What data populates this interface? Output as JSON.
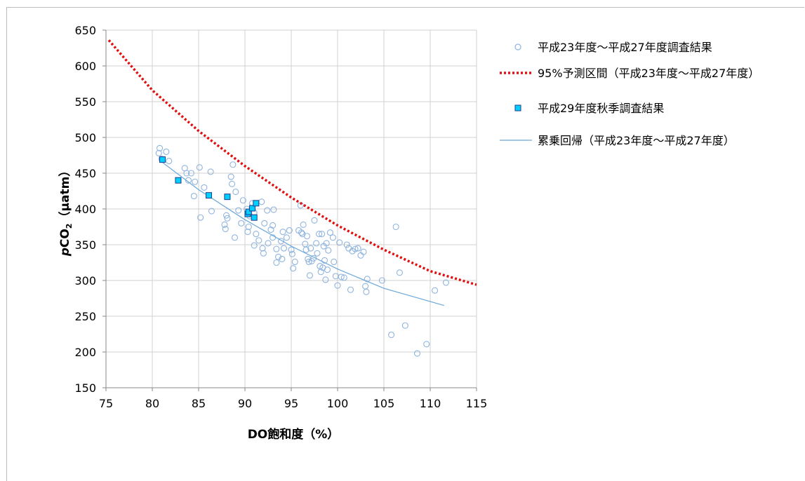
{
  "chart_data": {
    "type": "scatter",
    "xlabel": "DO飽和度（%）",
    "ylabel_italic": "p",
    "ylabel_main": "CO",
    "ylabel_sub": "2",
    "ylabel_unit": "（µatm）",
    "xlim": [
      75,
      115
    ],
    "ylim": [
      150,
      650
    ],
    "xticks": [
      "75",
      "80",
      "85",
      "90",
      "95",
      "100",
      "105",
      "110",
      "115"
    ],
    "yticks": [
      "150",
      "200",
      "250",
      "300",
      "350",
      "400",
      "450",
      "500",
      "550",
      "600",
      "650"
    ],
    "grid": "both",
    "legend_placement": "right",
    "colors": {
      "survey_circle": "#8fb4de",
      "prediction_line": "#e01010",
      "autumn_fill": "#00d0ff",
      "autumn_stroke": "#1f3d8c",
      "regression_line": "#6aa7da",
      "grid": "#d0d0d0"
    },
    "series": [
      {
        "name": "平成23年度～平成27年度調査結果",
        "kind": "scatter-circle",
        "points": [
          [
            80.8,
            485
          ],
          [
            80.7,
            478
          ],
          [
            81.0,
            470
          ],
          [
            81.5,
            480
          ],
          [
            81.8,
            467
          ],
          [
            83.5,
            457
          ],
          [
            83.7,
            450
          ],
          [
            84.2,
            450
          ],
          [
            83.9,
            440
          ],
          [
            84.6,
            438
          ],
          [
            84.5,
            418
          ],
          [
            85.1,
            458
          ],
          [
            85.2,
            388
          ],
          [
            85.6,
            430
          ],
          [
            86.3,
            452
          ],
          [
            86.4,
            397
          ],
          [
            88.7,
            462
          ],
          [
            88.5,
            445
          ],
          [
            88.6,
            435
          ],
          [
            89.0,
            424
          ],
          [
            88.0,
            391
          ],
          [
            88.1,
            387
          ],
          [
            87.8,
            378
          ],
          [
            87.9,
            372
          ],
          [
            88.9,
            360
          ],
          [
            89.3,
            398
          ],
          [
            89.6,
            380
          ],
          [
            89.8,
            412
          ],
          [
            90.2,
            400
          ],
          [
            90.5,
            390
          ],
          [
            90.4,
            375
          ],
          [
            90.3,
            368
          ],
          [
            90.8,
            408
          ],
          [
            91.0,
            395
          ],
          [
            91.2,
            365
          ],
          [
            91.0,
            349
          ],
          [
            91.5,
            356
          ],
          [
            91.8,
            410
          ],
          [
            91.9,
            345
          ],
          [
            92.0,
            338
          ],
          [
            92.1,
            380
          ],
          [
            92.4,
            398
          ],
          [
            92.5,
            352
          ],
          [
            92.8,
            371
          ],
          [
            93.0,
            360
          ],
          [
            93.1,
            399
          ],
          [
            93.0,
            377
          ],
          [
            93.4,
            344
          ],
          [
            93.6,
            333
          ],
          [
            93.4,
            325
          ],
          [
            93.9,
            355
          ],
          [
            94.1,
            368
          ],
          [
            94.0,
            330
          ],
          [
            94.2,
            345
          ],
          [
            94.5,
            360
          ],
          [
            94.8,
            370
          ],
          [
            95.0,
            343
          ],
          [
            95.1,
            337
          ],
          [
            95.2,
            317
          ],
          [
            95.4,
            326
          ],
          [
            95.8,
            370
          ],
          [
            96.0,
            405
          ],
          [
            96.1,
            367
          ],
          [
            96.2,
            365
          ],
          [
            96.3,
            378
          ],
          [
            96.5,
            351
          ],
          [
            96.6,
            343
          ],
          [
            96.7,
            362
          ],
          [
            96.8,
            330
          ],
          [
            96.9,
            326
          ],
          [
            97.0,
            307
          ],
          [
            97.1,
            345
          ],
          [
            97.2,
            327
          ],
          [
            97.4,
            331
          ],
          [
            97.5,
            384
          ],
          [
            97.7,
            352
          ],
          [
            97.8,
            338
          ],
          [
            98.0,
            365
          ],
          [
            98.1,
            320
          ],
          [
            98.2,
            312
          ],
          [
            98.3,
            365
          ],
          [
            98.4,
            318
          ],
          [
            98.5,
            348
          ],
          [
            98.6,
            328
          ],
          [
            98.7,
            301
          ],
          [
            98.8,
            352
          ],
          [
            98.9,
            315
          ],
          [
            99.0,
            342
          ],
          [
            99.2,
            367
          ],
          [
            99.5,
            360
          ],
          [
            99.6,
            326
          ],
          [
            99.8,
            306
          ],
          [
            100.0,
            293
          ],
          [
            100.2,
            353
          ],
          [
            100.4,
            305
          ],
          [
            100.7,
            304
          ],
          [
            101.0,
            350
          ],
          [
            101.2,
            345
          ],
          [
            101.4,
            287
          ],
          [
            101.6,
            341
          ],
          [
            101.9,
            344
          ],
          [
            102.2,
            345
          ],
          [
            102.5,
            335
          ],
          [
            102.8,
            340
          ],
          [
            103.0,
            292
          ],
          [
            103.1,
            284
          ],
          [
            103.2,
            302
          ],
          [
            104.8,
            300
          ],
          [
            105.8,
            224
          ],
          [
            106.3,
            375
          ],
          [
            106.7,
            311
          ],
          [
            107.3,
            237
          ],
          [
            108.6,
            198
          ],
          [
            109.6,
            211
          ],
          [
            110.5,
            286
          ],
          [
            111.7,
            297
          ]
        ]
      },
      {
        "name": "95%予測区間（平成23年度～平成27年度）",
        "kind": "dotted-curve",
        "points": [
          [
            75.3,
            636
          ],
          [
            80,
            566
          ],
          [
            85,
            509
          ],
          [
            90,
            460
          ],
          [
            95,
            416
          ],
          [
            100,
            377
          ],
          [
            105,
            343
          ],
          [
            110,
            313
          ],
          [
            115,
            294
          ]
        ]
      },
      {
        "name": "平成29年度秋季調査結果",
        "kind": "scatter-square",
        "points": [
          [
            81.1,
            469
          ],
          [
            82.8,
            440
          ],
          [
            86.1,
            419
          ],
          [
            88.1,
            417
          ],
          [
            90.3,
            393
          ],
          [
            90.4,
            396
          ],
          [
            90.8,
            401
          ],
          [
            91.0,
            388
          ],
          [
            91.2,
            408
          ]
        ]
      },
      {
        "name": "累乗回帰（平成23年度～平成27年度）",
        "kind": "thin-curve",
        "points": [
          [
            81.0,
            466
          ],
          [
            85,
            427
          ],
          [
            90,
            385
          ],
          [
            95,
            348
          ],
          [
            100,
            316
          ],
          [
            105,
            289
          ],
          [
            111.5,
            265
          ]
        ]
      }
    ]
  }
}
